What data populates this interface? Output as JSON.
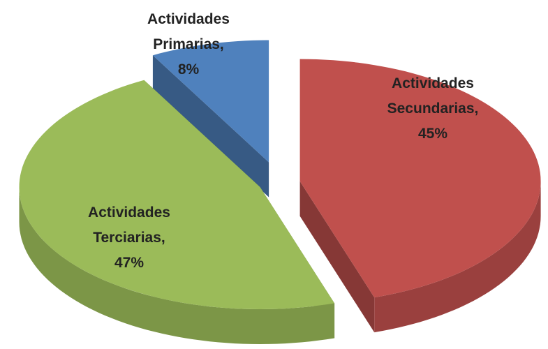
{
  "chart_data": {
    "type": "pie",
    "categories": [
      "Actividades Primarias,",
      "Actividades Secundarias,",
      "Actividades Terciarias,"
    ],
    "values": [
      8,
      45,
      47
    ],
    "value_labels": [
      "8%",
      "45%",
      "47%"
    ],
    "colors": [
      "#4f81bd",
      "#c0504d",
      "#9bbb59"
    ]
  }
}
